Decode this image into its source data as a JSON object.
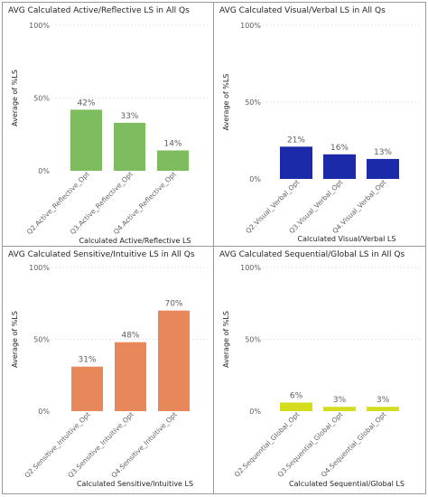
{
  "chart_data": [
    {
      "type": "bar",
      "title": "AVG Calculated Active/Reflective LS in All Qs",
      "xlabel": "Calculated Active/Reflective LS",
      "ylabel": "Average of %LS",
      "categories": [
        "Q2.Active_Reflective_Opt",
        "Q3.Active_Reflective_Opt",
        "Q4.Active_Reflective_Opt"
      ],
      "values": [
        42,
        33,
        14
      ],
      "data_labels": [
        "42%",
        "33%",
        "14%"
      ],
      "ylim": [
        0,
        100
      ],
      "yticks": [
        0,
        50,
        100
      ],
      "ytick_labels": [
        "0%",
        "50%",
        "100%"
      ],
      "color": "#7ebd5f"
    },
    {
      "type": "bar",
      "title": "AVG Calculated Visual/Verbal LS in All Qs",
      "xlabel": "Calculated Visual/Verbal LS",
      "ylabel": "Average of %LS",
      "categories": [
        "Q2.Visual_Verbal_Opt",
        "Q3.Visual_Verbal_Opt",
        "Q4.Visual_Verbal_Opt"
      ],
      "values": [
        21,
        16,
        13
      ],
      "data_labels": [
        "21%",
        "16%",
        "13%"
      ],
      "ylim": [
        0,
        100
      ],
      "yticks": [
        0,
        50,
        100
      ],
      "ytick_labels": [
        "0%",
        "50%",
        "100%"
      ],
      "color": "#1a2aa8"
    },
    {
      "type": "bar",
      "title": "AVG Calculated Sensitive/Intuitive LS in All Qs",
      "xlabel": "Calculated Sensitive/Intuitive LS",
      "ylabel": "Average of %LS",
      "categories": [
        "Q2.Sensitive_Intuitive_Opt",
        "Q3.Sensitive_Intuitive_Opt",
        "Q4.Sensitive_Intuitive_Opt"
      ],
      "values": [
        31,
        48,
        70
      ],
      "data_labels": [
        "31%",
        "48%",
        "70%"
      ],
      "ylim": [
        0,
        100
      ],
      "yticks": [
        0,
        50,
        100
      ],
      "ytick_labels": [
        "0%",
        "50%",
        "100%"
      ],
      "color": "#e8875a"
    },
    {
      "type": "bar",
      "title": "AVG Calculated Sequential/Global LS in All Qs",
      "xlabel": "Calculated Sequential/Global LS",
      "ylabel": "Average of %LS",
      "categories": [
        "Q2.Sequential_Global_Opt",
        "Q3.Sequential_Global_Opt",
        "Q4.Sequential_Global_Opt"
      ],
      "values": [
        6,
        3,
        3
      ],
      "data_labels": [
        "6%",
        "3%",
        "3%"
      ],
      "ylim": [
        0,
        100
      ],
      "yticks": [
        0,
        50,
        100
      ],
      "ytick_labels": [
        "0%",
        "50%",
        "100%"
      ],
      "color": "#d4dc1e"
    }
  ]
}
